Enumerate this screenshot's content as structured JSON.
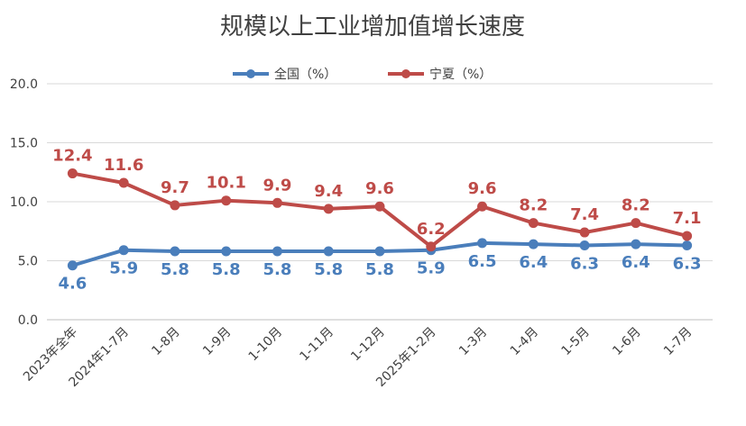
{
  "chart_data": {
    "type": "line",
    "title": "规模以上工业增加值增长速度",
    "categories": [
      "2023年全年",
      "2024年1-7月",
      "1-8月",
      "1-9月",
      "1-10月",
      "1-11月",
      "1-12月",
      "2025年1-2月",
      "1-3月",
      "1-4月",
      "1-5月",
      "1-6月",
      "1-7月"
    ],
    "series": [
      {
        "name": "全国（%）",
        "color": "#4a7ebb",
        "values": [
          4.6,
          5.9,
          5.8,
          5.8,
          5.8,
          5.8,
          5.8,
          5.9,
          6.5,
          6.4,
          6.3,
          6.4,
          6.3
        ],
        "label_position": "below"
      },
      {
        "name": "宁夏（%）",
        "color": "#be4b48",
        "values": [
          12.4,
          11.6,
          9.7,
          10.1,
          9.9,
          9.4,
          9.6,
          6.2,
          9.6,
          8.2,
          7.4,
          8.2,
          7.1
        ],
        "label_position": "above"
      }
    ],
    "ylim": [
      0,
      20
    ],
    "yticks": [
      "0.0",
      "5.0",
      "10.0",
      "15.0",
      "20.0"
    ],
    "grid": true,
    "legend": "top-center"
  }
}
